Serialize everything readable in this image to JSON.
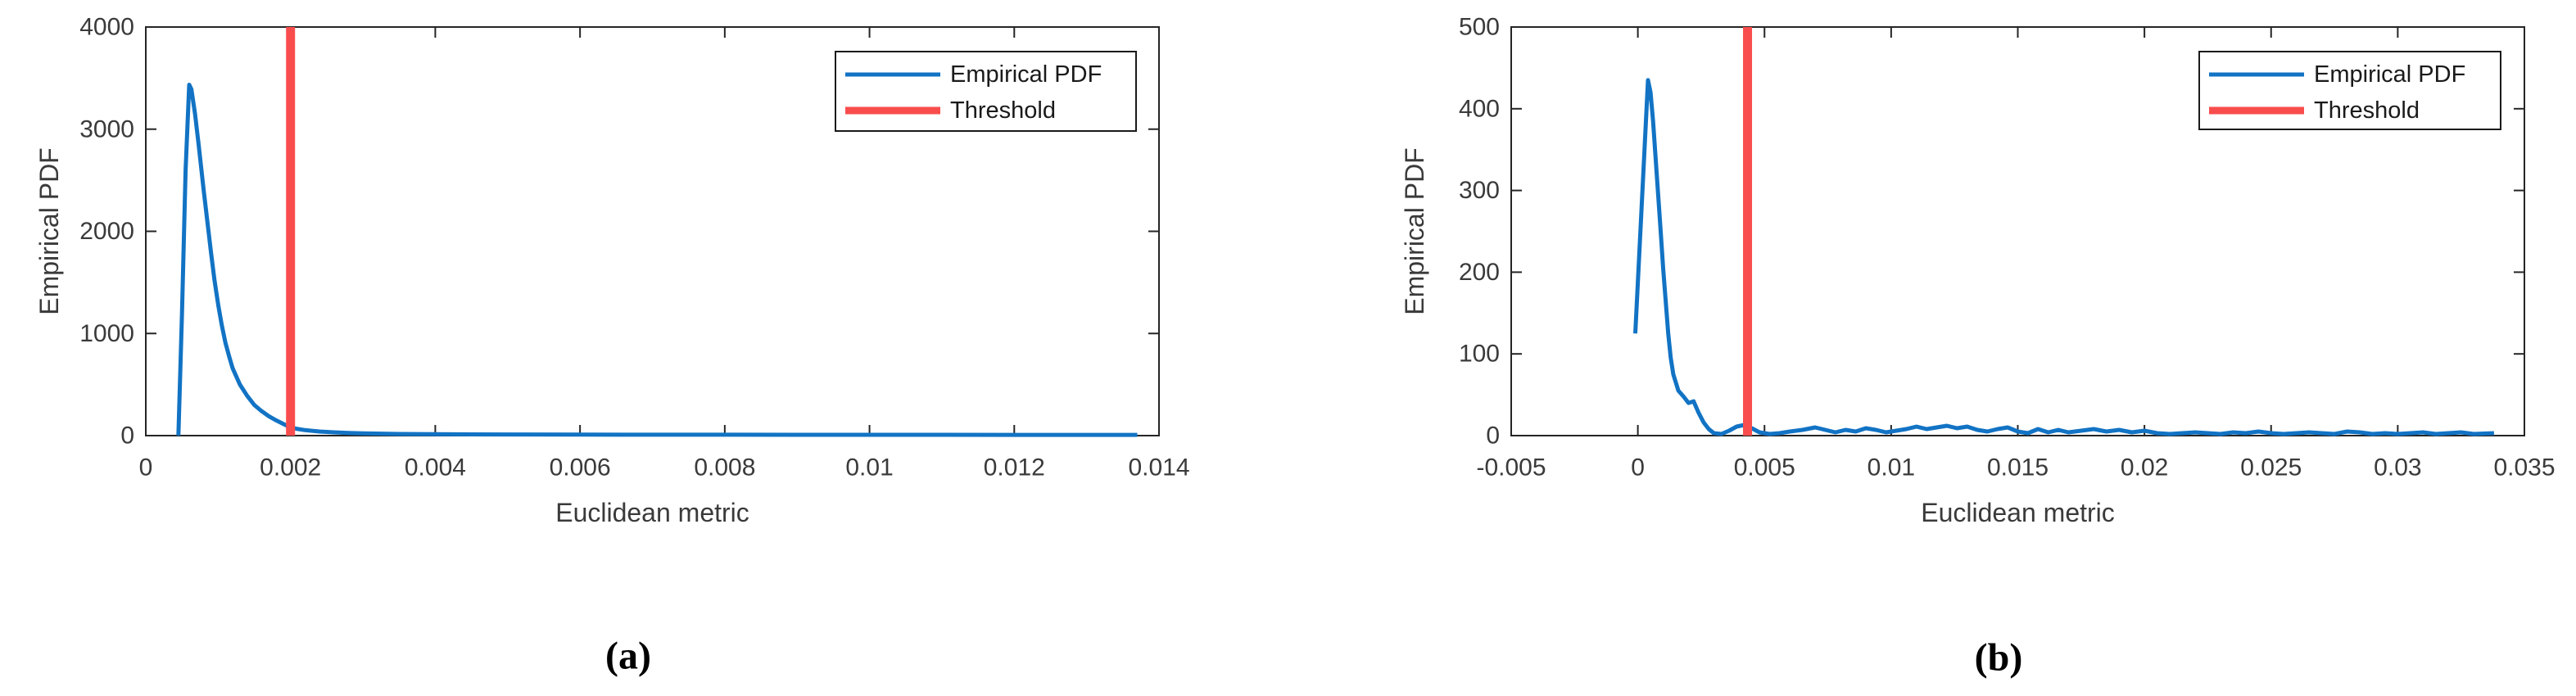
{
  "figure": {
    "background": "#ffffff",
    "panel_captions": [
      "(a)",
      "(b)"
    ]
  },
  "colors": {
    "pdf_line": "#1273c4",
    "threshold_line": "#f94d4d",
    "axis": "#252525",
    "tick_text": "#3a3a3a"
  },
  "chart_data": [
    {
      "type": "line",
      "panel": "(a)",
      "title": "",
      "xlabel": "Euclidean metric",
      "ylabel": "Empirical PDF",
      "xlim": [
        0,
        0.014
      ],
      "ylim": [
        0,
        4000
      ],
      "xtick_values": [
        0,
        0.002,
        0.004,
        0.006,
        0.008,
        0.01,
        0.012,
        0.014
      ],
      "xtick_labels": [
        "0",
        "0.002",
        "0.004",
        "0.006",
        "0.008",
        "0.01",
        "0.012",
        "0.014"
      ],
      "ytick_values": [
        0,
        1000,
        2000,
        3000,
        4000
      ],
      "ytick_labels": [
        "0",
        "1000",
        "2000",
        "3000",
        "4000"
      ],
      "grid": false,
      "legend_position": "upper-right",
      "legend": [
        {
          "name": "Empirical PDF",
          "color": "#1273c4"
        },
        {
          "name": "Threshold",
          "color": "#f94d4d"
        }
      ],
      "threshold_x": 0.002,
      "series": [
        {
          "name": "Empirical PDF",
          "x": [
            0.00045,
            0.0005,
            0.00055,
            0.0006,
            0.00063,
            0.00068,
            0.00073,
            0.0008,
            0.00085,
            0.0009,
            0.00095,
            0.001,
            0.00105,
            0.0011,
            0.00115,
            0.0012,
            0.0013,
            0.0014,
            0.0015,
            0.0016,
            0.0017,
            0.0018,
            0.0019,
            0.002,
            0.0021,
            0.0022,
            0.0024,
            0.0026,
            0.0028,
            0.003,
            0.0035,
            0.004,
            0.0045,
            0.005,
            0.006,
            0.007,
            0.008,
            0.009,
            0.01,
            0.011,
            0.012,
            0.013,
            0.0137
          ],
          "y": [
            0,
            1200,
            2600,
            3435,
            3390,
            3150,
            2850,
            2400,
            2100,
            1800,
            1520,
            1280,
            1080,
            910,
            780,
            660,
            500,
            390,
            300,
            240,
            190,
            150,
            115,
            80,
            65,
            54,
            40,
            32,
            26,
            22,
            16,
            14,
            12,
            11,
            10,
            9,
            9,
            8,
            8,
            8,
            7,
            7,
            7
          ]
        }
      ]
    },
    {
      "type": "line",
      "panel": "(b)",
      "title": "",
      "xlabel": "Euclidean metric",
      "ylabel": "Empirical PDF",
      "xlim": [
        -0.005,
        0.035
      ],
      "ylim": [
        0,
        500
      ],
      "xtick_values": [
        -0.005,
        0,
        0.005,
        0.01,
        0.015,
        0.02,
        0.025,
        0.03,
        0.035
      ],
      "xtick_labels": [
        "-0.005",
        "0",
        "0.005",
        "0.01",
        "0.015",
        "0.02",
        "0.025",
        "0.03",
        "0.035"
      ],
      "ytick_values": [
        0,
        100,
        200,
        300,
        400,
        500
      ],
      "ytick_labels": [
        "0",
        "100",
        "200",
        "300",
        "400",
        "500"
      ],
      "grid": false,
      "legend_position": "upper-right",
      "legend": [
        {
          "name": "Empirical PDF",
          "color": "#1273c4"
        },
        {
          "name": "Threshold",
          "color": "#f94d4d"
        }
      ],
      "threshold_x": 0.00433,
      "series": [
        {
          "name": "Empirical PDF",
          "x": [
            -0.0001,
            0.0004,
            0.0005,
            0.0006,
            0.0007,
            0.0008,
            0.0009,
            0.001,
            0.0011,
            0.0012,
            0.0013,
            0.0014,
            0.0016,
            0.0018,
            0.0019,
            0.002,
            0.0022,
            0.0024,
            0.0026,
            0.0028,
            0.003,
            0.0033,
            0.0036,
            0.0039,
            0.0042,
            0.0045,
            0.0048,
            0.0052,
            0.0056,
            0.006,
            0.0065,
            0.007,
            0.0074,
            0.0078,
            0.0082,
            0.0086,
            0.009,
            0.0094,
            0.0098,
            0.0102,
            0.0106,
            0.011,
            0.0114,
            0.0118,
            0.0122,
            0.0126,
            0.013,
            0.0134,
            0.0138,
            0.0142,
            0.0146,
            0.015,
            0.0154,
            0.0158,
            0.0162,
            0.0166,
            0.017,
            0.0175,
            0.018,
            0.0185,
            0.019,
            0.0195,
            0.02,
            0.0205,
            0.021,
            0.0215,
            0.022,
            0.0225,
            0.023,
            0.0235,
            0.024,
            0.0245,
            0.025,
            0.0255,
            0.026,
            0.0265,
            0.027,
            0.0275,
            0.028,
            0.0285,
            0.029,
            0.0295,
            0.03,
            0.0305,
            0.031,
            0.0315,
            0.032,
            0.0325,
            0.033,
            0.0338
          ],
          "y": [
            125,
            435,
            420,
            385,
            340,
            295,
            250,
            205,
            165,
            125,
            95,
            75,
            55,
            48,
            44,
            40,
            42,
            28,
            16,
            8,
            3,
            2,
            6,
            11,
            13,
            9,
            4,
            2,
            3,
            5,
            7,
            10,
            7,
            4,
            7,
            5,
            9,
            7,
            4,
            6,
            8,
            11,
            8,
            10,
            12,
            9,
            11,
            7,
            5,
            8,
            10,
            5,
            3,
            8,
            4,
            7,
            4,
            6,
            8,
            5,
            7,
            4,
            6,
            3,
            2,
            3,
            4,
            3,
            2,
            4,
            3,
            5,
            3,
            2,
            3,
            4,
            3,
            2,
            5,
            4,
            2,
            3,
            2,
            3,
            4,
            2,
            3,
            4,
            2,
            3
          ]
        }
      ]
    }
  ]
}
